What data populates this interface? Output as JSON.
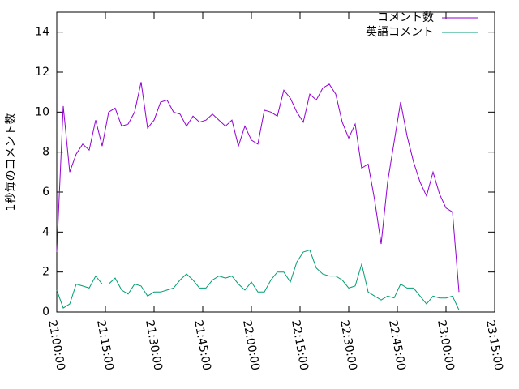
{
  "chart_data": {
    "type": "line",
    "ylabel": "1秒毎のコメント数",
    "x": [
      "21:00:00",
      "21:02:00",
      "21:04:00",
      "21:06:00",
      "21:08:00",
      "21:10:00",
      "21:12:00",
      "21:14:00",
      "21:16:00",
      "21:18:00",
      "21:20:00",
      "21:22:00",
      "21:24:00",
      "21:26:00",
      "21:28:00",
      "21:30:00",
      "21:32:00",
      "21:34:00",
      "21:36:00",
      "21:38:00",
      "21:40:00",
      "21:42:00",
      "21:44:00",
      "21:46:00",
      "21:48:00",
      "21:50:00",
      "21:52:00",
      "21:54:00",
      "21:56:00",
      "21:58:00",
      "22:00:00",
      "22:02:00",
      "22:04:00",
      "22:06:00",
      "22:08:00",
      "22:10:00",
      "22:12:00",
      "22:14:00",
      "22:16:00",
      "22:18:00",
      "22:20:00",
      "22:22:00",
      "22:24:00",
      "22:26:00",
      "22:28:00",
      "22:30:00",
      "22:32:00",
      "22:34:00",
      "22:36:00",
      "22:38:00",
      "22:40:00",
      "22:42:00",
      "22:44:00",
      "22:46:00",
      "22:48:00",
      "22:50:00",
      "22:52:00",
      "22:54:00",
      "22:56:00",
      "22:58:00",
      "23:00:00",
      "23:02:00",
      "23:04:00"
    ],
    "series": [
      {
        "name": "コメント数",
        "color": "#9400d3",
        "values": [
          3.0,
          10.3,
          7.0,
          7.9,
          8.4,
          8.1,
          9.6,
          8.3,
          10.0,
          10.2,
          9.3,
          9.4,
          10.0,
          11.5,
          9.2,
          9.6,
          10.5,
          10.6,
          10.0,
          9.9,
          9.3,
          9.8,
          9.5,
          9.6,
          9.9,
          9.6,
          9.3,
          9.6,
          8.3,
          9.3,
          8.6,
          8.4,
          10.1,
          10.0,
          9.8,
          11.1,
          10.7,
          10.0,
          9.5,
          10.9,
          10.6,
          11.2,
          11.4,
          10.9,
          9.5,
          8.7,
          9.4,
          7.2,
          7.4,
          5.6,
          3.4,
          6.5,
          8.5,
          10.5,
          8.8,
          7.5,
          6.5,
          5.8,
          7.0,
          5.9,
          5.2,
          5.0,
          1.0
        ]
      },
      {
        "name": "英語コメント",
        "color": "#009e73",
        "values": [
          1.1,
          0.2,
          0.4,
          1.4,
          1.3,
          1.2,
          1.8,
          1.4,
          1.4,
          1.7,
          1.1,
          0.9,
          1.4,
          1.3,
          0.8,
          1.0,
          1.0,
          1.1,
          1.2,
          1.6,
          1.9,
          1.6,
          1.2,
          1.2,
          1.6,
          1.8,
          1.7,
          1.8,
          1.4,
          1.1,
          1.5,
          1.0,
          1.0,
          1.6,
          2.0,
          2.0,
          1.5,
          2.5,
          3.0,
          3.1,
          2.2,
          1.9,
          1.8,
          1.8,
          1.6,
          1.2,
          1.3,
          2.4,
          1.0,
          0.8,
          0.6,
          0.8,
          0.7,
          1.4,
          1.2,
          1.2,
          0.8,
          0.4,
          0.8,
          0.7,
          0.7,
          0.8,
          0.1
        ]
      }
    ],
    "xlim": [
      "21:00:00",
      "23:15:00"
    ],
    "xticks": [
      "21:00:00",
      "21:15:00",
      "21:30:00",
      "21:45:00",
      "22:00:00",
      "22:15:00",
      "22:30:00",
      "22:45:00",
      "23:00:00",
      "23:15:00"
    ],
    "ylim": [
      0,
      15
    ],
    "yticks": [
      0,
      2,
      4,
      6,
      8,
      10,
      12,
      14
    ],
    "legend": "top-right"
  }
}
